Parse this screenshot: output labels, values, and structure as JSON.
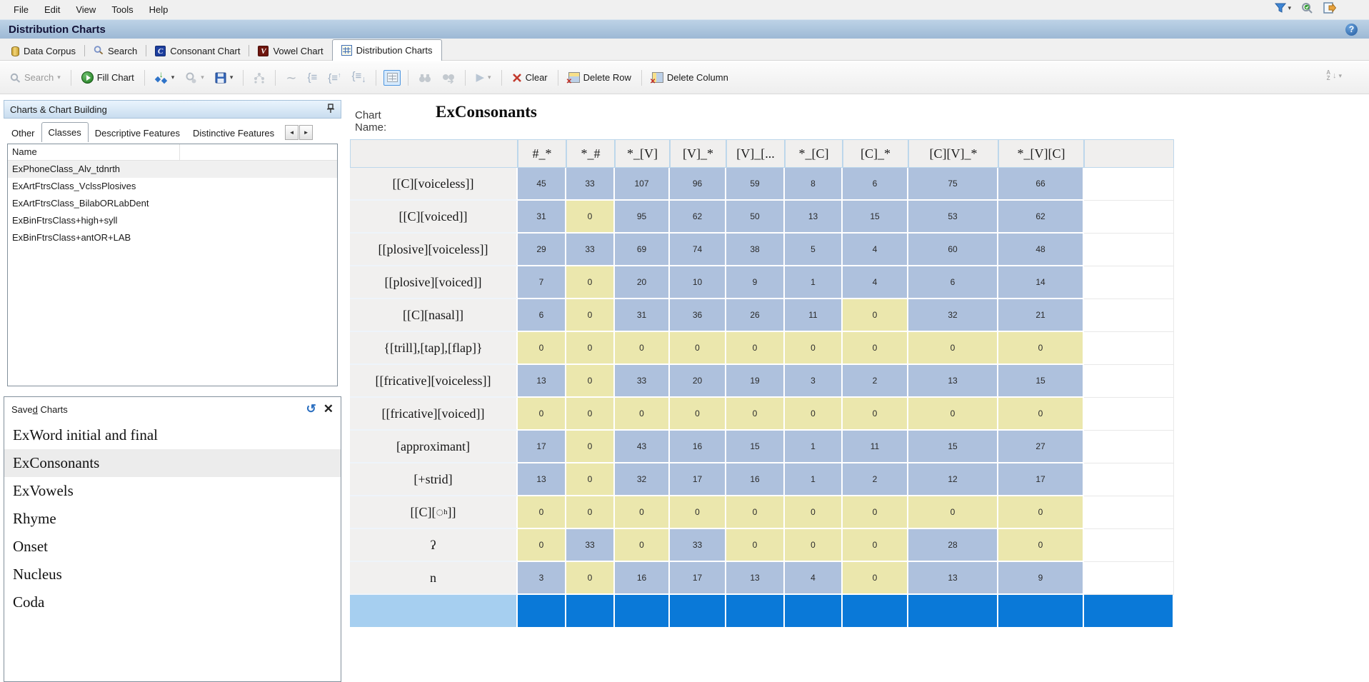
{
  "menu": {
    "items": [
      "File",
      "Edit",
      "View",
      "Tools",
      "Help"
    ]
  },
  "title_bar": {
    "title": "Distribution Charts",
    "help_glyph": "?"
  },
  "view_tabs": [
    {
      "label": "Data Corpus",
      "icon": "database-icon",
      "active": false
    },
    {
      "label": "Search",
      "icon": "search-icon",
      "active": false
    },
    {
      "label": "Consonant Chart",
      "icon": "consonant-chart-icon",
      "glyph": "C",
      "active": false
    },
    {
      "label": "Vowel Chart",
      "icon": "vowel-chart-icon",
      "glyph": "V",
      "active": false
    },
    {
      "label": "Distribution Charts",
      "icon": "distribution-chart-icon",
      "active": true
    }
  ],
  "toolbar": {
    "search": "Search",
    "fill_chart": "Fill Chart",
    "clear": "Clear",
    "delete_row": "Delete Row",
    "delete_column": "Delete Column"
  },
  "left_panel": {
    "header": "Charts & Chart Building",
    "tabs": [
      {
        "label": "Other",
        "active": false
      },
      {
        "label": "Classes",
        "active": true
      },
      {
        "label": "Descriptive Features",
        "active": false
      },
      {
        "label": "Distinctive Features",
        "active": false
      }
    ],
    "classes": {
      "column_header": "Name",
      "items": [
        "ExPhoneClass_Alv_tdnrth",
        "ExArtFtrsClass_VclssPlosives",
        "ExArtFtrsClass_BilabORLabDent",
        "ExBinFtrsClass+high+syll",
        "ExBinFtrsClass+antOR+LAB"
      ],
      "highlighted": "ExPhoneClass_Alv_tdnrth"
    },
    "saved_charts": {
      "header_pre": "Save",
      "header_key": "d",
      "header_post": " Charts",
      "items": [
        "ExWord initial and final",
        "ExConsonants",
        "ExVowels",
        "Rhyme",
        "Onset",
        "Nucleus",
        "Coda"
      ],
      "selected": "ExConsonants"
    }
  },
  "chart_header": {
    "label": "Chart Name:",
    "value": "ExConsonants"
  },
  "chart_data": {
    "type": "table",
    "title": "ExConsonants",
    "columns": [
      "#_*",
      "*_#",
      "*_[V]",
      "[V]_*",
      "[V]_[...",
      "*_[C]",
      "[C]_*",
      "[C][V]_*",
      "*_[V][C]"
    ],
    "rows": [
      {
        "label": "[[C][voiceless]]",
        "values": [
          45,
          33,
          107,
          96,
          59,
          8,
          6,
          75,
          66
        ]
      },
      {
        "label": "[[C][voiced]]",
        "values": [
          31,
          0,
          95,
          62,
          50,
          13,
          15,
          53,
          62
        ]
      },
      {
        "label": "[[plosive][voiceless]]",
        "values": [
          29,
          33,
          69,
          74,
          38,
          5,
          4,
          60,
          48
        ]
      },
      {
        "label": "[[plosive][voiced]]",
        "values": [
          7,
          0,
          20,
          10,
          9,
          1,
          4,
          6,
          14
        ]
      },
      {
        "label": "[[C][nasal]]",
        "values": [
          6,
          0,
          31,
          36,
          26,
          11,
          0,
          32,
          21
        ]
      },
      {
        "label": "{[trill],[tap],[flap]}",
        "values": [
          0,
          0,
          0,
          0,
          0,
          0,
          0,
          0,
          0
        ]
      },
      {
        "label": "[[fricative][voiceless]]",
        "values": [
          13,
          0,
          33,
          20,
          19,
          3,
          2,
          13,
          15
        ]
      },
      {
        "label": "[[fricative][voiced]]",
        "values": [
          0,
          0,
          0,
          0,
          0,
          0,
          0,
          0,
          0
        ]
      },
      {
        "label": "[approximant]",
        "values": [
          17,
          0,
          43,
          16,
          15,
          1,
          11,
          15,
          27
        ]
      },
      {
        "label": "[+strid]",
        "values": [
          13,
          0,
          32,
          17,
          16,
          1,
          2,
          12,
          17
        ]
      },
      {
        "label": "[[C][◌ʰ]]",
        "values": [
          0,
          0,
          0,
          0,
          0,
          0,
          0,
          0,
          0
        ]
      },
      {
        "label": "ʔ",
        "values": [
          0,
          33,
          0,
          33,
          0,
          0,
          0,
          28,
          0
        ]
      },
      {
        "label": "n",
        "values": [
          3,
          0,
          16,
          17,
          13,
          4,
          0,
          13,
          9
        ]
      }
    ],
    "legend": "nonzero count = blue cell, zero count = yellow cell; bottom bright-blue row = new-row placeholder",
    "colors": {
      "nonzero_cell": "#aec1dd",
      "zero_cell": "#ebe7ad",
      "new_row_cell": "#0a79d8",
      "new_row_label": "#a6cff0",
      "header_cell": "#f0efee"
    }
  }
}
